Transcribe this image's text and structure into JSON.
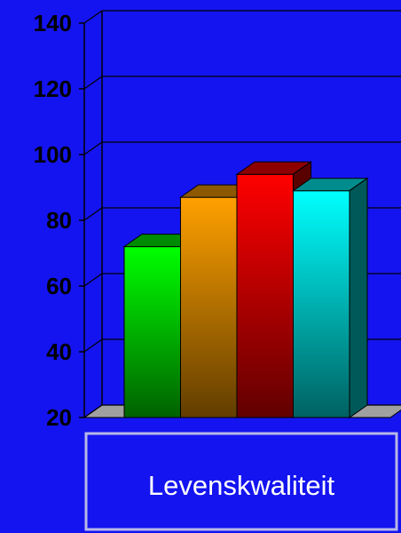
{
  "chart_data": {
    "type": "bar3d",
    "categories": [
      "Levenskwaliteit"
    ],
    "series": [
      {
        "color": "#00ff00",
        "values": [
          72
        ]
      },
      {
        "color": "#ffa000",
        "values": [
          87
        ]
      },
      {
        "color": "#ff0000",
        "values": [
          94
        ]
      },
      {
        "color": "#00ffff",
        "values": [
          89
        ]
      }
    ],
    "ylim": [
      20,
      140
    ],
    "yticks": [
      20,
      40,
      60,
      80,
      100,
      120,
      140
    ],
    "grid": true
  }
}
